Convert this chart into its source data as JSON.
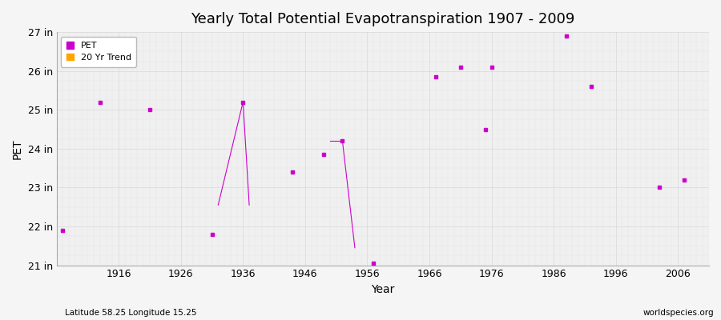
{
  "title": "Yearly Total Potential Evapotranspiration 1907 - 2009",
  "xlabel": "Year",
  "ylabel": "PET",
  "subtitle_left": "Latitude 58.25 Longitude 15.25",
  "subtitle_right": "worldspecies.org",
  "bg_color": "#f5f5f5",
  "plot_bg_color": "#f0f0f0",
  "ylim": [
    21,
    27
  ],
  "xlim": [
    1906,
    2011
  ],
  "ytick_labels": [
    "21 in",
    "22 in",
    "23 in",
    "24 in",
    "25 in",
    "26 in",
    "27 in"
  ],
  "ytick_values": [
    21,
    22,
    23,
    24,
    25,
    26,
    27
  ],
  "xtick_values": [
    1916,
    1926,
    1936,
    1946,
    1956,
    1966,
    1976,
    1986,
    1996,
    2006
  ],
  "pet_color": "#cc00cc",
  "trend_color": "#ffa500",
  "pet_points_x": [
    1907,
    1913,
    1921,
    1931,
    1944,
    1949,
    1957,
    1967,
    1975,
    1988,
    1992,
    2003,
    2007
  ],
  "pet_points_y": [
    21.9,
    25.2,
    25.0,
    21.8,
    23.4,
    23.85,
    21.05,
    25.85,
    24.5,
    26.9,
    25.6,
    23.0,
    23.2
  ],
  "line_segments": [
    {
      "x": [
        1932,
        1936
      ],
      "y": [
        22.55,
        25.2
      ]
    },
    {
      "x": [
        1936,
        1937
      ],
      "y": [
        25.2,
        22.55
      ]
    },
    {
      "x": [
        1950,
        1952
      ],
      "y": [
        24.2,
        24.2
      ]
    },
    {
      "x": [
        1952,
        1954
      ],
      "y": [
        24.2,
        21.45
      ]
    },
    {
      "x": [
        1971,
        1971
      ],
      "y": [
        26.1,
        26.1
      ]
    },
    {
      "x": [
        1976,
        1976
      ],
      "y": [
        26.1,
        26.1
      ]
    }
  ],
  "extra_points_x": [
    1936,
    1952,
    1971,
    1976
  ],
  "extra_points_y": [
    25.2,
    24.2,
    26.1,
    26.1
  ],
  "marker_size": 3,
  "grid_major_color": "#d8d8d8",
  "grid_minor_color": "#e4e4e4"
}
